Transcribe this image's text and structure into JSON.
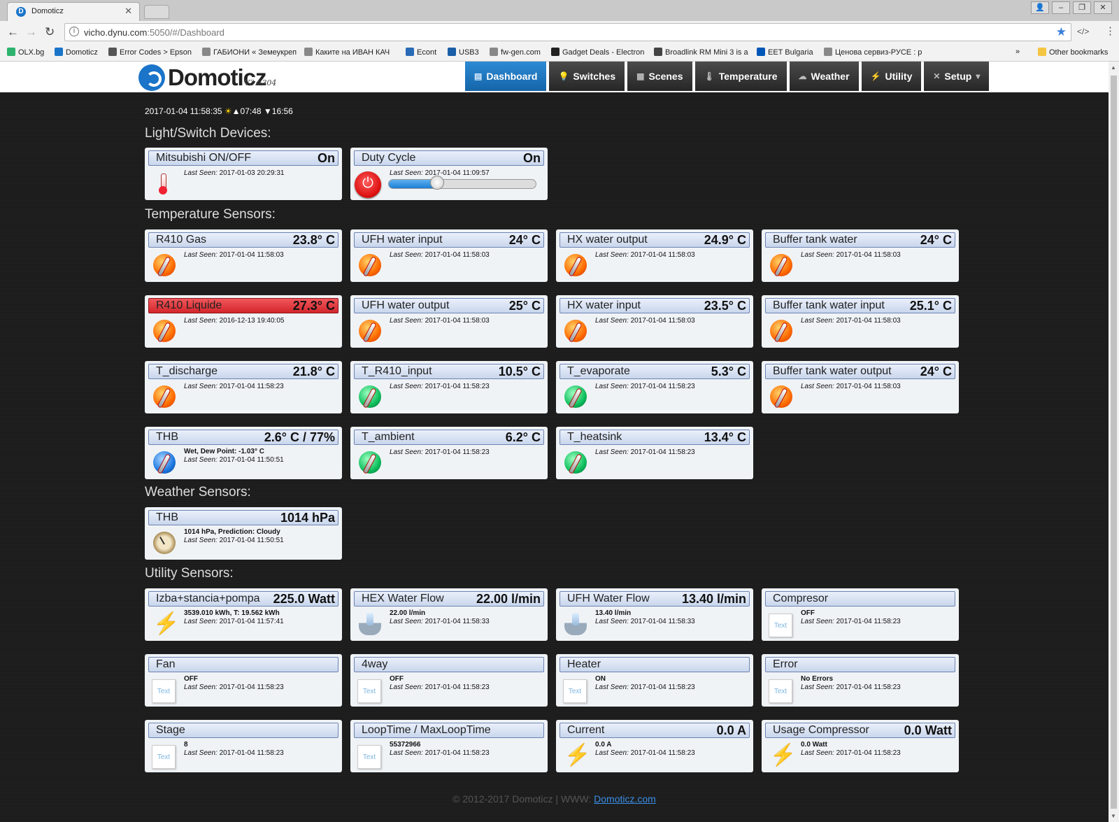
{
  "browser": {
    "tab_title": "Domoticz",
    "url_host": "vicho.dynu.com",
    "url_path": ":5050/#/Dashboard",
    "bookmarks": [
      {
        "label": "OLX.bg",
        "color": "#2db36e"
      },
      {
        "label": "Domoticz",
        "color": "#1a74c9"
      },
      {
        "label": "Error Codes > Epson",
        "color": "#555555"
      },
      {
        "label": "ГАБИОНИ « Земеукреп",
        "color": "#888888"
      },
      {
        "label": "Каките на ИВАН КАЧ",
        "color": "#888888"
      },
      {
        "label": "Econt",
        "color": "#2a6bb8"
      },
      {
        "label": "USB3",
        "color": "#1a5fa8"
      },
      {
        "label": "fw-gen.com",
        "color": "#888888"
      },
      {
        "label": "Gadget Deals - Electron",
        "color": "#222222"
      },
      {
        "label": "Broadlink RM Mini 3 is a",
        "color": "#444444"
      },
      {
        "label": "EET Bulgaria",
        "color": "#0057b8"
      },
      {
        "label": "Ценова сервиз-РУСЕ : р",
        "color": "#888888"
      }
    ],
    "overflow": "»",
    "other_bookmarks": "Other bookmarks"
  },
  "app": {
    "logo": "Domoticz",
    "version": "V3.6304",
    "nav": [
      {
        "label": "Dashboard",
        "icon": "dashboard-icon",
        "glyph": "▤",
        "active": true
      },
      {
        "label": "Switches",
        "icon": "bulb-icon",
        "glyph": "💡",
        "active": false
      },
      {
        "label": "Scenes",
        "icon": "scenes-icon",
        "glyph": "▦",
        "active": false
      },
      {
        "label": "Temperature",
        "icon": "thermometer-icon",
        "glyph": "🌡",
        "active": false
      },
      {
        "label": "Weather",
        "icon": "weather-icon",
        "glyph": "☁",
        "active": false
      },
      {
        "label": "Utility",
        "icon": "utility-icon",
        "glyph": "⚡",
        "active": false
      },
      {
        "label": "Setup",
        "icon": "setup-icon",
        "glyph": "✕",
        "active": false,
        "dropdown": "▾"
      }
    ]
  },
  "clock": {
    "datetime": "2017-01-04 11:58:35",
    "sun_icon": "☀",
    "sunrise": "▲07:48",
    "sunset": "▼16:56"
  },
  "sections": {
    "switches": "Light/Switch Devices:",
    "temperature": "Temperature Sensors:",
    "weather": "Weather Sensors:",
    "utility": "Utility Sensors:"
  },
  "switches": [
    {
      "name": "Mitsubishi ON/OFF",
      "value": "On",
      "seen": "2017-01-03 20:29:31",
      "icon": "thermometer-icon"
    },
    {
      "name": "Duty Cycle",
      "value": "On",
      "seen": "2017-01-04 11:09:57",
      "icon": "power-icon",
      "level": 0.33
    }
  ],
  "last_seen_label": "Last Seen:",
  "temperature": [
    {
      "name": "R410 Gas",
      "value": "23.8° C",
      "seen": "2017-01-04 11:58:03",
      "kind": "hot"
    },
    {
      "name": "UFH water input",
      "value": "24° C",
      "seen": "2017-01-04 11:58:03",
      "kind": "hot"
    },
    {
      "name": "HX water output",
      "value": "24.9° C",
      "seen": "2017-01-04 11:58:03",
      "kind": "hot"
    },
    {
      "name": "Buffer tank water",
      "value": "24° C",
      "seen": "2017-01-04 11:58:03",
      "kind": "hot"
    },
    {
      "name": "R410 Liquide",
      "value": "27.3° C",
      "seen": "2016-12-13 19:40:05",
      "kind": "hot",
      "alarm": true
    },
    {
      "name": "UFH water output",
      "value": "25° C",
      "seen": "2017-01-04 11:58:03",
      "kind": "hot"
    },
    {
      "name": "HX water input",
      "value": "23.5° C",
      "seen": "2017-01-04 11:58:03",
      "kind": "hot"
    },
    {
      "name": "Buffer tank water input",
      "value": "25.1° C",
      "seen": "2017-01-04 11:58:03",
      "kind": "hot"
    },
    {
      "name": "T_discharge",
      "value": "21.8° C",
      "seen": "2017-01-04 11:58:23",
      "kind": "hot"
    },
    {
      "name": "T_R410_input",
      "value": "10.5° C",
      "seen": "2017-01-04 11:58:23",
      "kind": "cold"
    },
    {
      "name": "T_evaporate",
      "value": "5.3° C",
      "seen": "2017-01-04 11:58:23",
      "kind": "cold"
    },
    {
      "name": "Buffer tank water output",
      "value": "24° C",
      "seen": "2017-01-04 11:58:03",
      "kind": "hot"
    },
    {
      "name": "THB",
      "value": "2.6° C / 77%",
      "seen": "2017-01-04 11:50:51",
      "kind": "blue",
      "data": "Wet, Dew Point: -1.03° C"
    },
    {
      "name": "T_ambient",
      "value": "6.2° C",
      "seen": "2017-01-04 11:58:23",
      "kind": "cold"
    },
    {
      "name": "T_heatsink",
      "value": "13.4° C",
      "seen": "2017-01-04 11:58:23",
      "kind": "cold"
    }
  ],
  "weather": [
    {
      "name": "THB",
      "value": "1014 hPa",
      "data": "1014 hPa, Prediction: Cloudy",
      "seen": "2017-01-04 11:50:51",
      "icon": "barometer-icon"
    }
  ],
  "utility": [
    {
      "name": "Izba+stancia+pompa",
      "value": "225.0 Watt",
      "data": "3539.010 kWh, T: 19.562 kWh",
      "seen": "2017-01-04 11:57:41",
      "icon": "bolt"
    },
    {
      "name": "HEX Water Flow",
      "value": "22.00 l/min",
      "data": "22.00 l/min",
      "seen": "2017-01-04 11:58:33",
      "icon": "water"
    },
    {
      "name": "UFH Water Flow",
      "value": "13.40 l/min",
      "data": "13.40 l/min",
      "seen": "2017-01-04 11:58:33",
      "icon": "water"
    },
    {
      "name": "Compresor",
      "value": "",
      "data": "OFF",
      "seen": "2017-01-04 11:58:23",
      "icon": "text"
    },
    {
      "name": "Fan",
      "value": "",
      "data": "OFF",
      "seen": "2017-01-04 11:58:23",
      "icon": "text"
    },
    {
      "name": "4way",
      "value": "",
      "data": "OFF",
      "seen": "2017-01-04 11:58:23",
      "icon": "text"
    },
    {
      "name": "Heater",
      "value": "",
      "data": "ON",
      "seen": "2017-01-04 11:58:23",
      "icon": "text"
    },
    {
      "name": "Error",
      "value": "",
      "data": "No Errors",
      "seen": "2017-01-04 11:58:23",
      "icon": "text"
    },
    {
      "name": "Stage",
      "value": "",
      "data": "8",
      "seen": "2017-01-04 11:58:23",
      "icon": "text"
    },
    {
      "name": "LoopTime / MaxLoopTime",
      "value": "",
      "data": "55372966",
      "seen": "2017-01-04 11:58:23",
      "icon": "text"
    },
    {
      "name": "Current",
      "value": "0.0 A",
      "data": "0.0 A",
      "seen": "2017-01-04 11:58:23",
      "icon": "bolt"
    },
    {
      "name": "Usage Compressor",
      "value": "0.0 Watt",
      "data": "0.0 Watt",
      "seen": "2017-01-04 11:58:23",
      "icon": "bolt"
    }
  ],
  "text_icon_label": "Text",
  "footer": {
    "copyright": "© 2012-2017 Domoticz | WWW: ",
    "link": "Domoticz.com"
  },
  "colors": {
    "accent": "#1a74c9",
    "alarm": "#d3262c",
    "background": "#1c1c1c"
  }
}
